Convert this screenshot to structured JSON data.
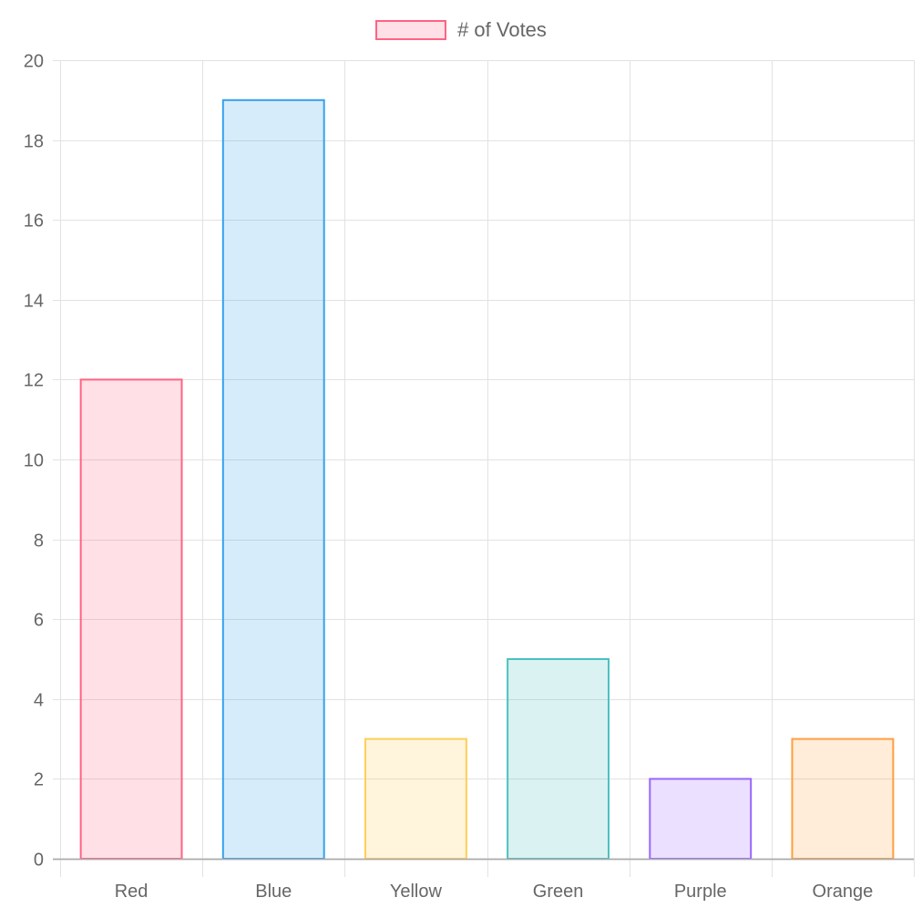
{
  "chart_data": {
    "type": "bar",
    "title": "",
    "xlabel": "",
    "ylabel": "",
    "categories": [
      "Red",
      "Blue",
      "Yellow",
      "Green",
      "Purple",
      "Orange"
    ],
    "series": [
      {
        "name": "# of Votes",
        "values": [
          12,
          19,
          3,
          5,
          2,
          3
        ]
      }
    ],
    "ylim": [
      0,
      20
    ],
    "yticks": [
      0,
      2,
      4,
      6,
      8,
      10,
      12,
      14,
      16,
      18,
      20
    ],
    "grid": true,
    "legend_position": "top",
    "bar_border_colors": [
      "#ff6384",
      "#36a2eb",
      "#ffce56",
      "#4bc0c0",
      "#9966ff",
      "#ff9f40"
    ],
    "bar_fill_colors": [
      "rgba(255,99,132,0.2)",
      "rgba(54,162,235,0.2)",
      "rgba(255,206,86,0.2)",
      "rgba(75,192,192,0.2)",
      "rgba(153,102,255,0.2)",
      "rgba(255,159,64,0.2)"
    ]
  },
  "legend": {
    "label": "# of Votes",
    "color": "#ff6384"
  }
}
